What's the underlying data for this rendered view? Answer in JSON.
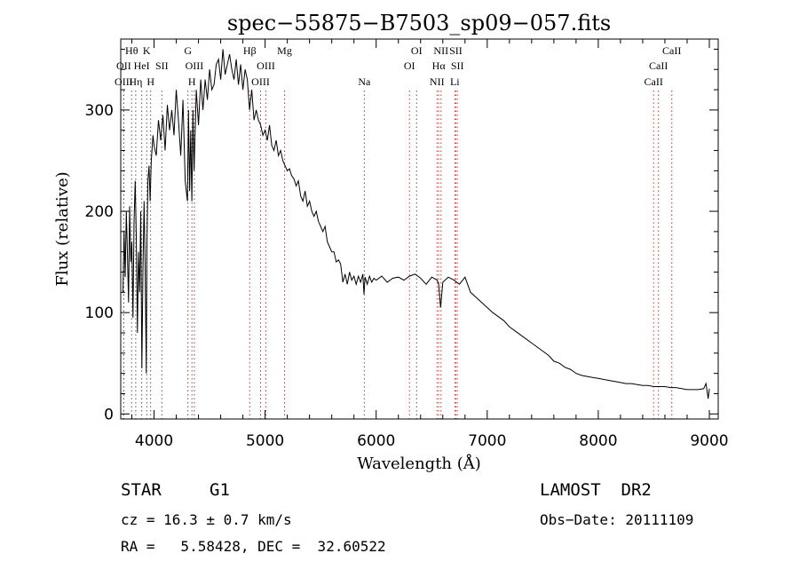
{
  "chart_data": {
    "type": "line",
    "title": "spec−55875−B7503_sp09−057.fits",
    "xlabel": "Wavelength (Å)",
    "ylabel": "Flux (relative)",
    "xlim": [
      3700,
      9080
    ],
    "ylim": [
      -5,
      370
    ],
    "xticks": [
      4000,
      5000,
      6000,
      7000,
      8000,
      9000
    ],
    "yticks": [
      0,
      100,
      200,
      300
    ],
    "series": [
      {
        "name": "flux",
        "x": [
          3720,
          3730,
          3740,
          3750,
          3760,
          3770,
          3780,
          3790,
          3800,
          3810,
          3820,
          3830,
          3840,
          3850,
          3860,
          3870,
          3880,
          3890,
          3900,
          3910,
          3920,
          3930,
          3935,
          3945,
          3955,
          3965,
          3975,
          3990,
          4000,
          4020,
          4040,
          4060,
          4080,
          4100,
          4120,
          4140,
          4160,
          4180,
          4200,
          4220,
          4240,
          4260,
          4280,
          4300,
          4310,
          4320,
          4330,
          4340,
          4350,
          4360,
          4380,
          4400,
          4420,
          4440,
          4460,
          4480,
          4500,
          4520,
          4540,
          4560,
          4580,
          4600,
          4620,
          4640,
          4660,
          4680,
          4700,
          4720,
          4740,
          4760,
          4780,
          4800,
          4820,
          4840,
          4860,
          4880,
          4900,
          4920,
          4940,
          4960,
          4980,
          5000,
          5020,
          5040,
          5060,
          5080,
          5100,
          5120,
          5140,
          5160,
          5180,
          5200,
          5220,
          5240,
          5260,
          5280,
          5300,
          5320,
          5340,
          5360,
          5380,
          5400,
          5420,
          5440,
          5460,
          5480,
          5500,
          5520,
          5540,
          5560,
          5580,
          5600,
          5620,
          5640,
          5660,
          5680,
          5700,
          5720,
          5740,
          5760,
          5780,
          5800,
          5820,
          5840,
          5860,
          5880,
          5890,
          5900,
          5920,
          5940,
          5960,
          5980,
          6000,
          6050,
          6100,
          6150,
          6200,
          6250,
          6300,
          6350,
          6400,
          6450,
          6500,
          6550,
          6563,
          6580,
          6600,
          6650,
          6700,
          6750,
          6800,
          6850,
          6900,
          6950,
          7000,
          7050,
          7100,
          7150,
          7200,
          7250,
          7300,
          7350,
          7400,
          7450,
          7500,
          7550,
          7600,
          7650,
          7700,
          7750,
          7800,
          7850,
          7900,
          7950,
          8000,
          8050,
          8100,
          8150,
          8200,
          8250,
          8300,
          8350,
          8400,
          8450,
          8500,
          8550,
          8600,
          8650,
          8700,
          8750,
          8800,
          8850,
          8900,
          8950,
          8970,
          8990,
          9000
        ],
        "y": [
          120,
          180,
          135,
          200,
          160,
          110,
          205,
          150,
          170,
          95,
          190,
          230,
          175,
          80,
          160,
          120,
          200,
          45,
          140,
          210,
          145,
          40,
          160,
          230,
          245,
          210,
          250,
          275,
          265,
          255,
          290,
          270,
          295,
          260,
          305,
          280,
          300,
          275,
          320,
          290,
          255,
          310,
          230,
          210,
          300,
          220,
          280,
          210,
          300,
          240,
          320,
          285,
          330,
          300,
          330,
          310,
          340,
          320,
          325,
          345,
          350,
          330,
          360,
          335,
          345,
          355,
          340,
          330,
          350,
          325,
          345,
          320,
          340,
          330,
          300,
          320,
          290,
          300,
          290,
          285,
          275,
          280,
          270,
          285,
          265,
          260,
          270,
          255,
          260,
          250,
          245,
          240,
          242,
          235,
          232,
          225,
          230,
          215,
          210,
          220,
          205,
          210,
          200,
          195,
          200,
          190,
          185,
          180,
          185,
          170,
          165,
          160,
          160,
          150,
          152,
          148,
          130,
          138,
          128,
          140,
          132,
          136,
          128,
          136,
          130,
          138,
          118,
          135,
          128,
          136,
          130,
          134,
          132,
          136,
          130,
          134,
          135,
          132,
          136,
          138,
          134,
          128,
          135,
          132,
          128,
          105,
          130,
          135,
          132,
          128,
          135,
          120,
          115,
          110,
          105,
          100,
          96,
          92,
          86,
          82,
          78,
          74,
          70,
          66,
          62,
          58,
          52,
          50,
          46,
          44,
          40,
          38,
          37,
          36,
          35,
          34,
          33,
          32,
          31,
          30,
          30,
          29,
          28,
          28,
          27,
          27,
          27,
          26,
          26,
          25,
          24,
          24,
          24,
          25,
          30,
          15,
          25
        ]
      }
    ],
    "spectral_lines": [
      {
        "label": "Hθ",
        "x": 3798,
        "row": 1
      },
      {
        "label": "K",
        "x": 3934,
        "row": 1
      },
      {
        "label": "OII",
        "x": 3727,
        "row": 2
      },
      {
        "label": "HeI",
        "x": 3889,
        "row": 2
      },
      {
        "label": "SII",
        "x": 4070,
        "row": 2
      },
      {
        "label": "OIII",
        "x": 3727,
        "row": 3
      },
      {
        "label": "Hη",
        "x": 3835,
        "row": 3
      },
      {
        "label": "H",
        "x": 3969,
        "row": 3
      },
      {
        "label": "G",
        "x": 4305,
        "row": 1
      },
      {
        "label": "OIII",
        "x": 4363,
        "row": 2
      },
      {
        "label": "H",
        "x": 4341,
        "row": 3
      },
      {
        "label": "Hβ",
        "x": 4861,
        "row": 1
      },
      {
        "label": "OIII",
        "x": 5007,
        "row": 2
      },
      {
        "label": "OIII",
        "x": 4959,
        "row": 3
      },
      {
        "label": "Mg",
        "x": 5175,
        "row": 1
      },
      {
        "label": "Na",
        "x": 5893,
        "row": 3
      },
      {
        "label": "OI",
        "x": 6364,
        "row": 1
      },
      {
        "label": "OI",
        "x": 6300,
        "row": 2
      },
      {
        "label": "NII",
        "x": 6584,
        "row": 1
      },
      {
        "label": "SII",
        "x": 6717,
        "row": 1
      },
      {
        "label": "Hα",
        "x": 6563,
        "row": 2
      },
      {
        "label": "SII",
        "x": 6731,
        "row": 2
      },
      {
        "label": "NII",
        "x": 6548,
        "row": 3
      },
      {
        "label": "Li",
        "x": 6708,
        "row": 3
      },
      {
        "label": "CaII",
        "x": 8662,
        "row": 1
      },
      {
        "label": "CaII",
        "x": 8542,
        "row": 2
      },
      {
        "label": "CaII",
        "x": 8498,
        "row": 3
      }
    ],
    "red_line_indices": [
      10,
      11,
      12,
      14,
      17,
      18,
      19,
      20,
      21,
      22,
      23,
      24,
      25,
      26
    ]
  },
  "footer": {
    "type_label": "STAR",
    "subclass": "G1",
    "survey": "LAMOST  DR2",
    "cz": "cz = 16.3 ± 0.7 km/s",
    "obs_date": "Obs−Date: 20111109",
    "coords": "RA =   5.58428, DEC =  32.60522"
  }
}
